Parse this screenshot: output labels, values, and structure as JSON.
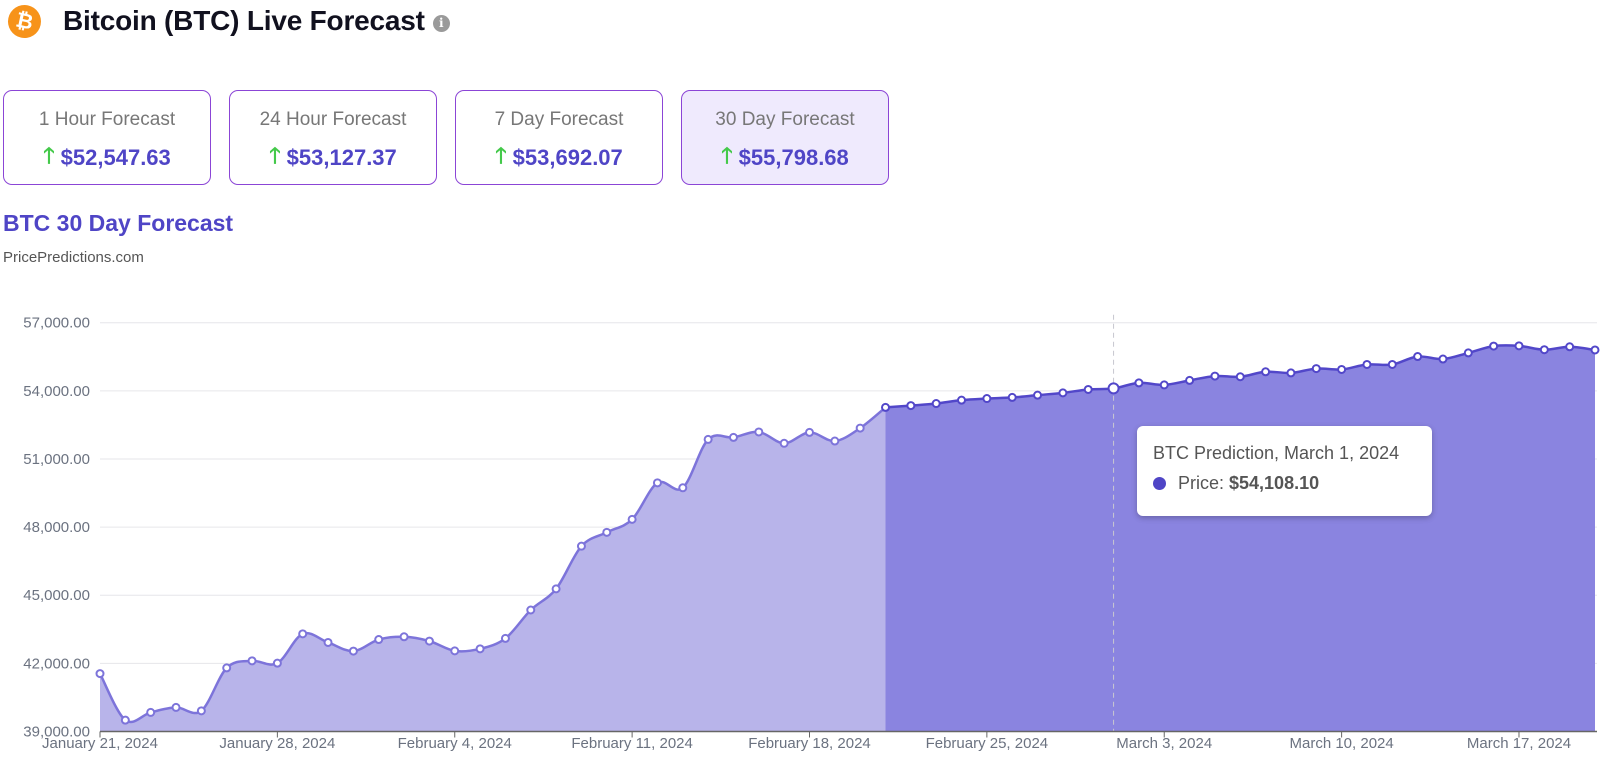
{
  "header": {
    "title": "Bitcoin (BTC) Live Forecast",
    "logo_icon": "bitcoin-icon",
    "info_icon": "info-icon",
    "logo_glyph": "₿",
    "info_glyph": "i"
  },
  "cards": [
    {
      "label": "1 Hour Forecast",
      "value": "$52,547.63",
      "trend": "up",
      "active": false
    },
    {
      "label": "24 Hour Forecast",
      "value": "$53,127.37",
      "trend": "up",
      "active": false
    },
    {
      "label": "7 Day Forecast",
      "value": "$53,692.07",
      "trend": "up",
      "active": false
    },
    {
      "label": "30 Day Forecast",
      "value": "$55,798.68",
      "trend": "up",
      "active": true
    }
  ],
  "arrow_glyph": "🡑",
  "chart_title": "BTC 30 Day Forecast",
  "chart_source": "PricePredictions.com",
  "colors": {
    "accent": "#4f45c6",
    "up": "#44c94a",
    "history_fill": "#b8b4ea",
    "history_line": "#7d74da",
    "forecast_fill": "#8a84e0",
    "forecast_line": "#5247c9",
    "card_border": "#8b45d6"
  },
  "tooltip": {
    "title": "BTC Prediction, March 1, 2024",
    "label": "Price:",
    "value": "$54,108.10"
  },
  "chart_data": {
    "type": "area",
    "ylim": [
      39000,
      57000
    ],
    "yticks": [
      "57,000.00",
      "54,000.00",
      "51,000.00",
      "48,000.00",
      "45,000.00",
      "42,000.00",
      "39,000.00"
    ],
    "ytick_values": [
      57000,
      54000,
      51000,
      48000,
      45000,
      42000,
      39000
    ],
    "xlim": [
      "2024-01-21",
      "2024-03-20"
    ],
    "xticks": [
      {
        "date": "2024-01-21",
        "label": "January 21, 2024"
      },
      {
        "date": "2024-01-28",
        "label": "January 28, 2024"
      },
      {
        "date": "2024-02-04",
        "label": "February 4, 2024"
      },
      {
        "date": "2024-02-11",
        "label": "February 11, 2024"
      },
      {
        "date": "2024-02-18",
        "label": "February 18, 2024"
      },
      {
        "date": "2024-02-25",
        "label": "February 25, 2024"
      },
      {
        "date": "2024-03-03",
        "label": "March 3, 2024"
      },
      {
        "date": "2024-03-10",
        "label": "March 10, 2024"
      },
      {
        "date": "2024-03-17",
        "label": "March 17, 2024"
      }
    ],
    "grid": true,
    "hover_date": "2024-03-01",
    "series": [
      {
        "kind": "history",
        "start": "2024-01-21",
        "values": [
          41550,
          39500,
          39840,
          40060,
          39910,
          41800,
          42110,
          42010,
          43300,
          42920,
          42540,
          43050,
          43170,
          42980,
          42550,
          42640,
          43100,
          44350,
          45280,
          47160,
          47770,
          48340,
          49950,
          49730,
          51860,
          51950,
          52190,
          51690,
          52170,
          51790,
          52360
        ]
      },
      {
        "kind": "forecast",
        "start": "2024-02-21",
        "values": [
          53270,
          53350,
          53440,
          53590,
          53660,
          53710,
          53810,
          53910,
          54060,
          54108.1,
          54350,
          54260,
          54460,
          54650,
          54620,
          54840,
          54790,
          54980,
          54940,
          55160,
          55160,
          55510,
          55400,
          55670,
          55970,
          55980,
          55810,
          55940,
          55798.68
        ]
      }
    ]
  }
}
